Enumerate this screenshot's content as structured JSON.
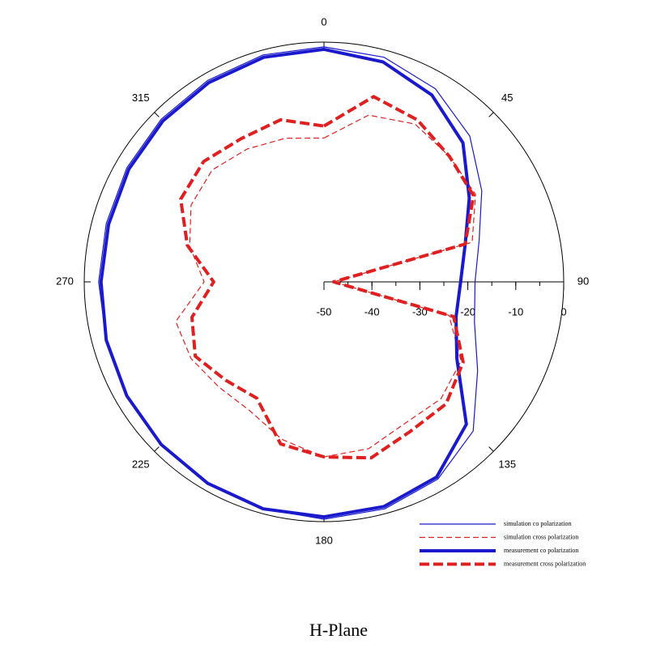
{
  "chart_data": {
    "type": "polar",
    "title": "H-Plane",
    "x": [
      0,
      15,
      30,
      45,
      60,
      75,
      90,
      105,
      120,
      135,
      150,
      165,
      180,
      195,
      210,
      225,
      240,
      255,
      270,
      285,
      300,
      315,
      330,
      345
    ],
    "xticks": [
      0,
      45,
      90,
      135,
      180,
      225,
      270,
      315
    ],
    "ylim": [
      -50,
      0
    ],
    "yticks": [
      -50,
      -40,
      -30,
      -20,
      -10,
      0
    ],
    "series": [
      {
        "name": "simulation co polarization",
        "color": "#1a1acc",
        "line": "thin-solid",
        "values": [
          -1,
          -1.5,
          -3.5,
          -7,
          -12,
          -16.5,
          -18.5,
          -17.5,
          -13,
          -6,
          -2.5,
          -1,
          -0.5,
          -1,
          -1.5,
          -2,
          -2.5,
          -3,
          -3,
          -3,
          -2.5,
          -2,
          -1.5,
          -1
        ]
      },
      {
        "name": "simulation cross polarization",
        "color": "#e02020",
        "line": "thin-dashed",
        "values": [
          -20,
          -14,
          -12,
          -13,
          -13.5,
          -18,
          -48,
          -23,
          -17,
          -15.5,
          -16,
          -14,
          -13.5,
          -16,
          -19,
          -19,
          -18,
          -18,
          -25,
          -21,
          -18,
          -17,
          -18,
          -19
        ]
      },
      {
        "name": "measurement co polarization",
        "color": "#1a1acc",
        "line": "thick-solid",
        "values": [
          -1.5,
          -2.5,
          -5,
          -9,
          -15,
          -19.5,
          -21.5,
          -21.5,
          -18,
          -8,
          -3,
          -1.5,
          -1,
          -1,
          -1.5,
          -2,
          -2.5,
          -3,
          -3.5,
          -3.5,
          -3,
          -2.5,
          -2,
          -1.5
        ]
      },
      {
        "name": "measurement cross polarization",
        "color": "#e02020",
        "line": "thick-dashed",
        "values": [
          -17.5,
          -10,
          -11,
          -13,
          -14,
          -19.5,
          -48,
          -22,
          -16.5,
          -14,
          -14,
          -12,
          -13.5,
          -15,
          -22,
          -21,
          -19,
          -21.5,
          -27,
          -20.5,
          -15.5,
          -14.5,
          -15.5,
          -15
        ]
      }
    ]
  }
}
